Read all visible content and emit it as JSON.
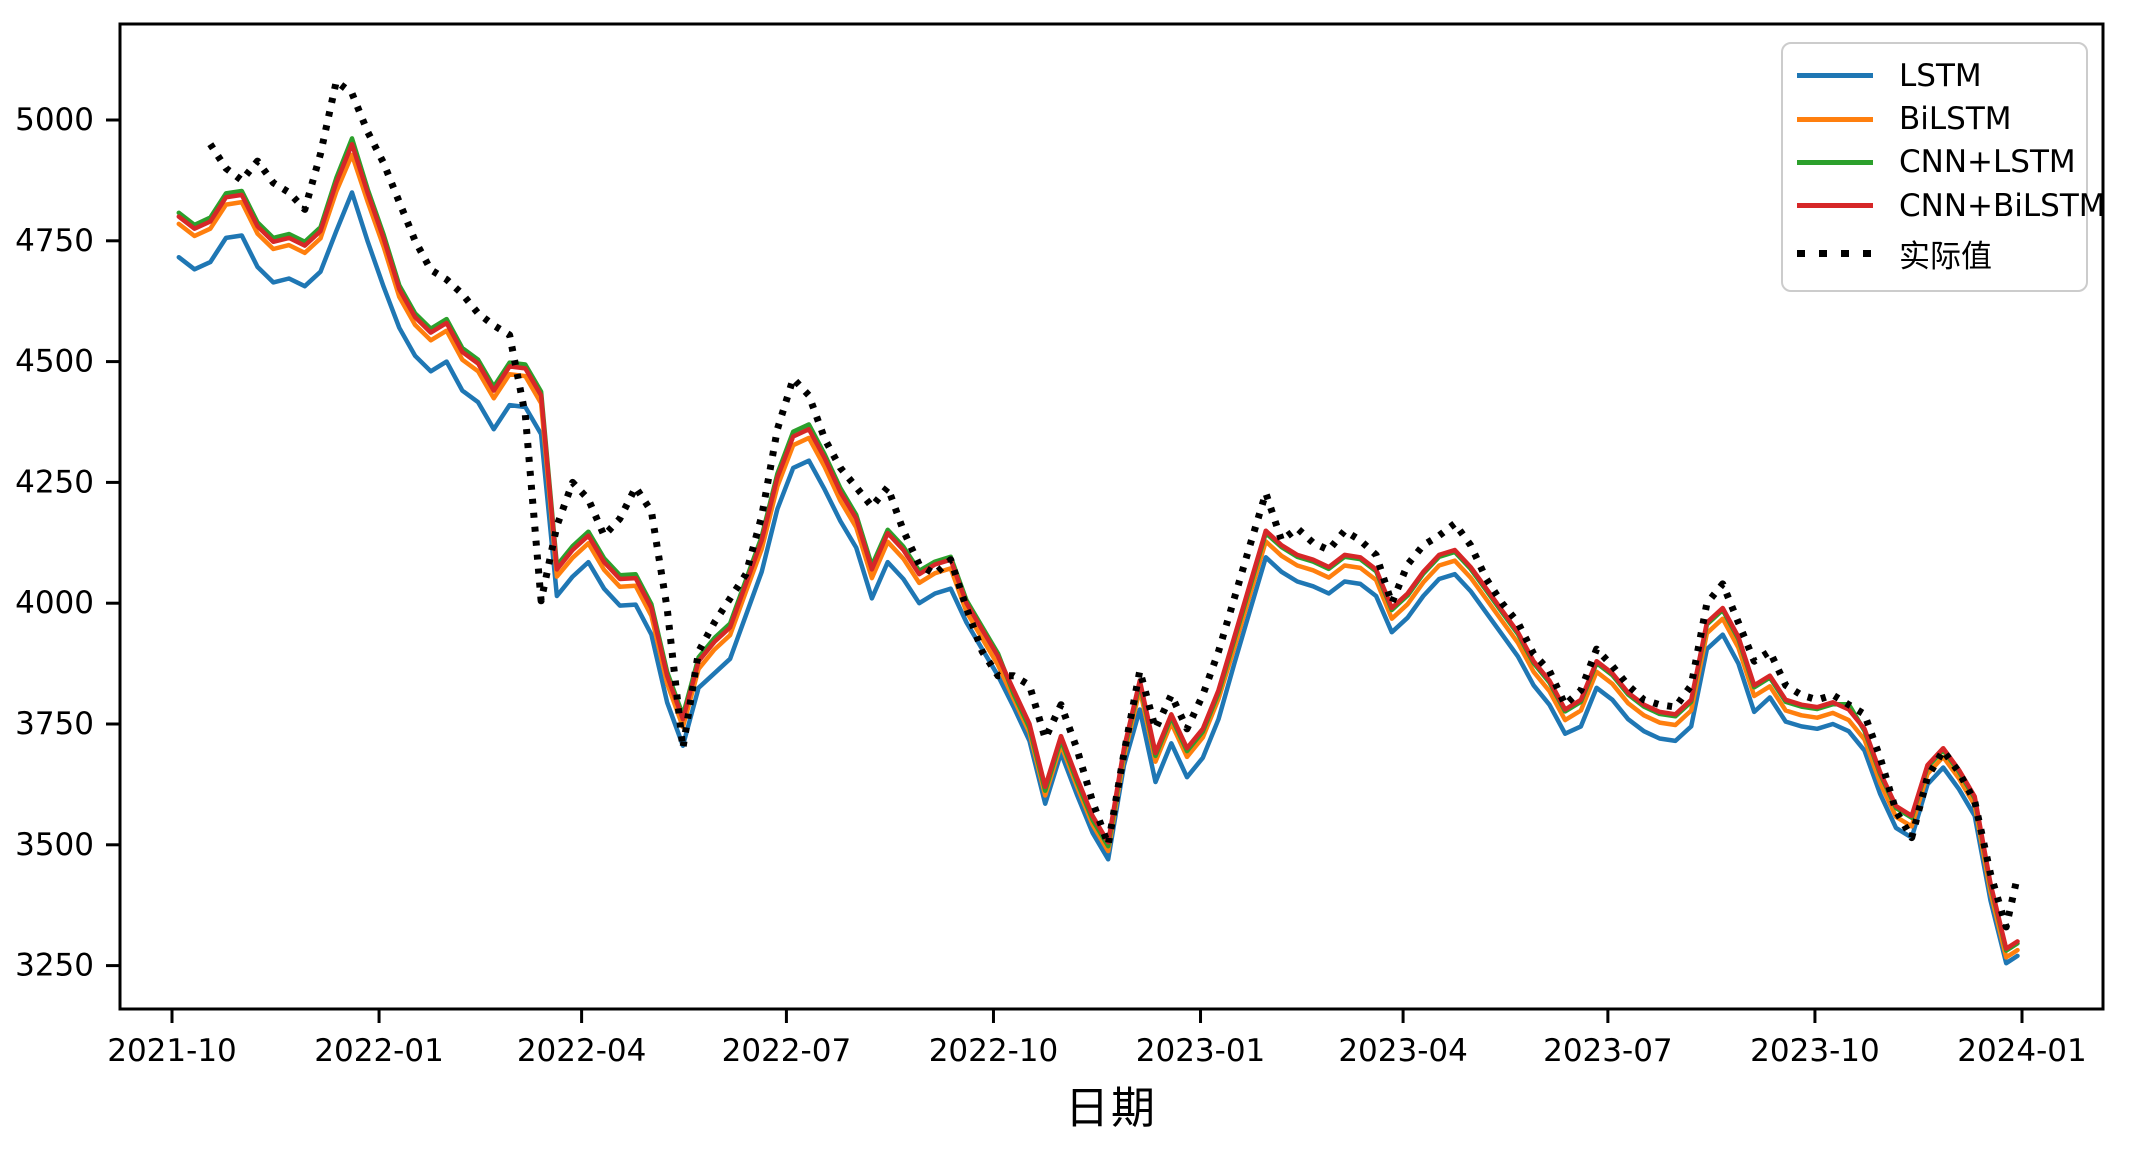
{
  "chart_data": {
    "type": "line",
    "title": "",
    "xlabel": "日期",
    "ylabel": "",
    "grid": false,
    "legend_position": "upper-right",
    "x_axis": {
      "unit": "days since 2021-10-01",
      "tick_days": [
        0,
        92,
        182,
        273,
        365,
        457,
        547,
        638,
        730,
        822
      ],
      "tick_labels": [
        "2021-10",
        "2022-01",
        "2022-04",
        "2022-07",
        "2022-10",
        "2023-01",
        "2023-04",
        "2023-07",
        "2023-10",
        "2024-01"
      ]
    },
    "y_axis": {
      "ticks": [
        3250,
        3500,
        3750,
        4000,
        4250,
        4500,
        4750,
        5000
      ],
      "tick_labels": [
        "3250",
        "3500",
        "3750",
        "4000",
        "4250",
        "4500",
        "4750",
        "5000"
      ],
      "approx_value_range_at_spines": [
        3160,
        5200
      ]
    },
    "x_days": [
      3,
      10,
      17,
      24,
      31,
      38,
      45,
      52,
      59,
      66,
      73,
      80,
      87,
      94,
      101,
      108,
      115,
      122,
      129,
      136,
      143,
      150,
      157,
      164,
      171,
      178,
      185,
      192,
      199,
      206,
      213,
      220,
      227,
      234,
      241,
      248,
      255,
      262,
      269,
      276,
      283,
      290,
      297,
      304,
      311,
      318,
      325,
      332,
      339,
      346,
      353,
      360,
      367,
      374,
      381,
      388,
      395,
      402,
      409,
      416,
      423,
      430,
      437,
      444,
      451,
      458,
      465,
      472,
      479,
      486,
      493,
      500,
      507,
      514,
      521,
      528,
      535,
      542,
      549,
      556,
      563,
      570,
      577,
      584,
      591,
      598,
      605,
      612,
      619,
      626,
      633,
      640,
      647,
      654,
      661,
      668,
      675,
      682,
      689,
      696,
      703,
      710,
      717,
      724,
      731,
      738,
      745,
      752,
      759,
      766,
      773,
      780,
      787,
      794,
      801,
      808,
      815,
      820
    ],
    "series": [
      {
        "name": "LSTM",
        "color": "#1f77b4",
        "style": "solid",
        "values": [
          4716,
          4691,
          4706,
          4756,
          4761,
          4696,
          4664,
          4672,
          4656,
          4686,
          4770,
          4850,
          4748,
          4655,
          4570,
          4512,
          4480,
          4500,
          4440,
          4416,
          4360,
          4410,
          4406,
          4350,
          4015,
          4055,
          4085,
          4030,
          3995,
          3997,
          3935,
          3795,
          3705,
          3825,
          3855,
          3885,
          3975,
          4065,
          4195,
          4280,
          4295,
          4235,
          4170,
          4115,
          4010,
          4085,
          4050,
          4000,
          4020,
          4030,
          3960,
          3905,
          3850,
          3785,
          3715,
          3585,
          3690,
          3605,
          3525,
          3470,
          3665,
          3780,
          3630,
          3710,
          3640,
          3680,
          3760,
          3875,
          3985,
          4095,
          4065,
          4045,
          4035,
          4020,
          4045,
          4040,
          4015,
          3940,
          3970,
          4015,
          4050,
          4060,
          4025,
          3980,
          3935,
          3890,
          3830,
          3790,
          3730,
          3745,
          3825,
          3800,
          3760,
          3735,
          3720,
          3715,
          3745,
          3905,
          3935,
          3875,
          3775,
          3805,
          3755,
          3745,
          3740,
          3750,
          3735,
          3695,
          3605,
          3535,
          3515,
          3625,
          3660,
          3615,
          3560,
          3385,
          3255,
          3270
        ]
      },
      {
        "name": "BiLSTM",
        "color": "#ff7f0e",
        "style": "solid",
        "values": [
          4785,
          4760,
          4775,
          4825,
          4830,
          4765,
          4733,
          4741,
          4725,
          4755,
          4852,
          4928,
          4830,
          4738,
          4634,
          4576,
          4544,
          4564,
          4504,
          4480,
          4424,
          4474,
          4470,
          4414,
          4055,
          4094,
          4124,
          4069,
          4034,
          4036,
          3974,
          3834,
          3744,
          3864,
          3904,
          3934,
          4024,
          4112,
          4242,
          4327,
          4342,
          4282,
          4212,
          4157,
          4052,
          4127,
          4092,
          4042,
          4062,
          4072,
          3982,
          3927,
          3872,
          3802,
          3732,
          3602,
          3707,
          3622,
          3542,
          3487,
          3682,
          3822,
          3672,
          3752,
          3682,
          3722,
          3802,
          3908,
          4018,
          4128,
          4098,
          4078,
          4068,
          4053,
          4078,
          4073,
          4048,
          3968,
          3998,
          4043,
          4078,
          4088,
          4053,
          4008,
          3963,
          3918,
          3858,
          3818,
          3758,
          3778,
          3858,
          3833,
          3793,
          3768,
          3753,
          3748,
          3778,
          3938,
          3968,
          3908,
          3808,
          3828,
          3778,
          3768,
          3763,
          3773,
          3758,
          3718,
          3628,
          3558,
          3538,
          3647,
          3682,
          3637,
          3582,
          3402,
          3267,
          3282
        ]
      },
      {
        "name": "CNN+LSTM",
        "color": "#2ca02c",
        "style": "solid",
        "values": [
          4808,
          4783,
          4798,
          4848,
          4853,
          4788,
          4756,
          4764,
          4748,
          4778,
          4880,
          4962,
          4856,
          4763,
          4658,
          4600,
          4568,
          4588,
          4528,
          4504,
          4448,
          4498,
          4494,
          4438,
          4078,
          4118,
          4148,
          4093,
          4058,
          4060,
          3998,
          3858,
          3768,
          3888,
          3928,
          3958,
          4048,
          4138,
          4268,
          4355,
          4370,
          4308,
          4238,
          4183,
          4078,
          4152,
          4117,
          4067,
          4086,
          4096,
          4006,
          3951,
          3896,
          3812,
          3742,
          3612,
          3717,
          3632,
          3552,
          3497,
          3694,
          3834,
          3684,
          3764,
          3694,
          3734,
          3814,
          3924,
          4034,
          4145,
          4116,
          4096,
          4086,
          4071,
          4096,
          4091,
          4066,
          3986,
          4016,
          4061,
          4096,
          4106,
          4071,
          4026,
          3981,
          3936,
          3876,
          3836,
          3776,
          3796,
          3876,
          3851,
          3811,
          3786,
          3771,
          3766,
          3796,
          3956,
          3986,
          3926,
          3826,
          3846,
          3796,
          3786,
          3781,
          3791,
          3791,
          3736,
          3646,
          3576,
          3556,
          3661,
          3696,
          3651,
          3596,
          3416,
          3281,
          3296
        ]
      },
      {
        "name": "CNN+BiLSTM",
        "color": "#d62728",
        "style": "solid",
        "values": [
          4800,
          4775,
          4790,
          4840,
          4845,
          4780,
          4748,
          4756,
          4740,
          4770,
          4870,
          4950,
          4848,
          4755,
          4650,
          4592,
          4560,
          4580,
          4520,
          4496,
          4440,
          4490,
          4486,
          4430,
          4070,
          4110,
          4140,
          4085,
          4050,
          4052,
          3990,
          3850,
          3760,
          3880,
          3920,
          3950,
          4040,
          4130,
          4260,
          4345,
          4360,
          4300,
          4230,
          4175,
          4070,
          4145,
          4110,
          4060,
          4080,
          4090,
          4000,
          3945,
          3890,
          3820,
          3750,
          3620,
          3725,
          3640,
          3560,
          3505,
          3700,
          3840,
          3690,
          3770,
          3700,
          3740,
          3820,
          3930,
          4040,
          4150,
          4120,
          4100,
          4090,
          4075,
          4100,
          4095,
          4070,
          3990,
          4020,
          4065,
          4100,
          4110,
          4075,
          4030,
          3985,
          3940,
          3880,
          3840,
          3780,
          3800,
          3880,
          3855,
          3815,
          3790,
          3775,
          3770,
          3800,
          3960,
          3990,
          3930,
          3830,
          3850,
          3800,
          3790,
          3785,
          3795,
          3780,
          3740,
          3650,
          3580,
          3560,
          3665,
          3700,
          3655,
          3600,
          3420,
          3285,
          3300
        ]
      },
      {
        "name": "实际值",
        "color": "#000000",
        "style": "dotted",
        "values": [
          null,
          null,
          4950,
          4900,
          4875,
          4915,
          4870,
          4850,
          4815,
          4930,
          5080,
          5055,
          4975,
          4911,
          4830,
          4750,
          4690,
          4670,
          4640,
          4600,
          4575,
          4555,
          4390,
          4005,
          4160,
          4250,
          4215,
          4140,
          4175,
          4240,
          4190,
          3990,
          3700,
          3900,
          3960,
          4010,
          4060,
          4180,
          4360,
          4465,
          4430,
          4340,
          4280,
          4240,
          4200,
          4240,
          4150,
          4080,
          4060,
          4090,
          3990,
          3900,
          3850,
          3850,
          3830,
          3720,
          3790,
          3700,
          3590,
          3500,
          3690,
          3860,
          3740,
          3810,
          3740,
          3810,
          3900,
          4010,
          4120,
          4228,
          4130,
          4155,
          4125,
          4110,
          4150,
          4130,
          4100,
          4000,
          4080,
          4120,
          4140,
          4165,
          4120,
          4050,
          4000,
          3960,
          3895,
          3860,
          3790,
          3820,
          3905,
          3870,
          3830,
          3800,
          3790,
          3785,
          3830,
          4000,
          4040,
          3960,
          3880,
          3900,
          3830,
          3810,
          3800,
          3810,
          3790,
          3770,
          3680,
          3570,
          3515,
          3640,
          3695,
          3650,
          3590,
          3440,
          3330,
          3435
        ]
      }
    ]
  }
}
